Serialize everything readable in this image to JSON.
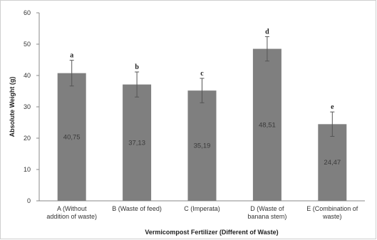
{
  "chart_data": {
    "type": "bar",
    "categories": [
      [
        "A (Without",
        "addition of waste)"
      ],
      [
        "B (Waste of feed)"
      ],
      [
        "C (Imperata)"
      ],
      [
        "D (Waste of",
        "banana stem)"
      ],
      [
        "E (Combination of",
        "waste)"
      ]
    ],
    "values": [
      40.75,
      37.13,
      35.19,
      48.51,
      24.47
    ],
    "value_labels": [
      "40,75",
      "37,13",
      "35,19",
      "48,51",
      "24,47"
    ],
    "error": [
      4.1,
      4.0,
      3.9,
      3.9,
      3.9
    ],
    "letters": [
      "a",
      "b",
      "c",
      "d",
      "e"
    ],
    "xlabel": "Vermicompost Fertilizer (Different of Waste)",
    "ylabel": "Absolute Weight (g)",
    "ylim": [
      0,
      60
    ],
    "yticks": [
      0,
      10,
      20,
      30,
      40,
      50,
      60
    ],
    "grid": false,
    "legend": "none",
    "bar_color": "#7f7f7f",
    "error_color": "#555555"
  }
}
